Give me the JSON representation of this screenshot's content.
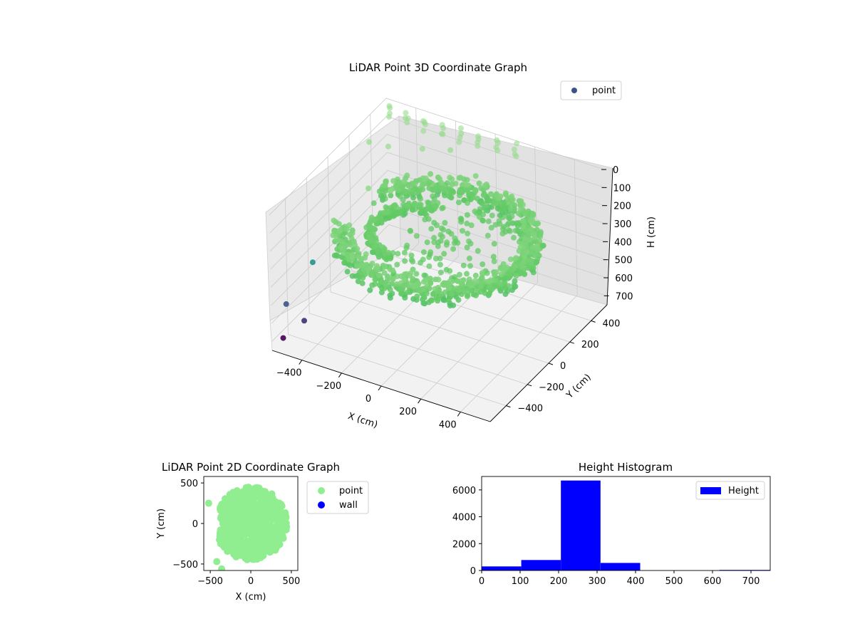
{
  "chart_data": [
    {
      "type": "scatter",
      "title": "LiDAR Point 3D Coordinate Graph",
      "xlabel": "X (cm)",
      "ylabel": "Y (cm)",
      "zlabel": "H (cm)",
      "xlim": [
        -550,
        550
      ],
      "ylim": [
        -550,
        550
      ],
      "zlim": [
        0,
        750
      ],
      "z_inverted": true,
      "xticks": [
        -400,
        -200,
        0,
        200,
        400
      ],
      "yticks": [
        -400,
        -200,
        0,
        200,
        400
      ],
      "zticks": [
        0,
        100,
        200,
        300,
        400,
        500,
        600,
        700
      ],
      "legend": {
        "entries": [
          "point"
        ],
        "placement": "top-right"
      },
      "colormap": "viridis",
      "series": [
        {
          "name": "point",
          "color": "#3b528b",
          "description_points": {
            "ring": {
              "r_min": 380,
              "r_max": 470,
              "h_min": 200,
              "h_max": 310
            },
            "disc": {
              "r_max": 420,
              "h": 270
            },
            "inner_arc": {
              "r": 210,
              "h": 240
            },
            "outliers": [
              {
                "x": -520,
                "y": -500,
                "h": 700
              },
              {
                "x": -540,
                "y": -430,
                "h": 560
              },
              {
                "x": -450,
                "y": -430,
                "h": 620
              },
              {
                "x": -500,
                "y": -250,
                "h": 420
              },
              {
                "x": -430,
                "y": -120,
                "h": 380
              },
              {
                "x": -380,
                "y": 60,
                "h": 150
              },
              {
                "x": -300,
                "y": 120,
                "h": 170
              }
            ],
            "top_row_h": [
              0,
              20,
              40,
              60
            ]
          }
        }
      ]
    },
    {
      "type": "scatter",
      "title": "LiDAR Point 2D Coordinate Graph",
      "xlabel": "X (cm)",
      "ylabel": "Y (cm)",
      "xlim": [
        -580,
        580
      ],
      "ylim": [
        -580,
        580
      ],
      "xticks": [
        -500,
        0,
        500
      ],
      "yticks": [
        -500,
        0,
        500
      ],
      "legend": {
        "entries": [
          "point",
          "wall"
        ],
        "placement": "outside-right"
      },
      "series": [
        {
          "name": "point",
          "color": "#90ee90",
          "shape": "filled disc radius ~450 cm with notch at left"
        },
        {
          "name": "wall",
          "color": "#0000ff",
          "points": []
        }
      ]
    },
    {
      "type": "bar",
      "title": "Height Histogram",
      "xlim": [
        0,
        750
      ],
      "ylim": [
        0,
        7000
      ],
      "xticks": [
        0,
        100,
        200,
        300,
        400,
        500,
        600,
        700
      ],
      "yticks": [
        0,
        2000,
        4000,
        6000
      ],
      "legend": {
        "entries": [
          "Height"
        ],
        "placement": "top-right"
      },
      "series": [
        {
          "name": "Height",
          "color": "#0000ff",
          "bins": [
            {
              "from": 0,
              "to": 103,
              "count": 300
            },
            {
              "from": 103,
              "to": 206,
              "count": 780
            },
            {
              "from": 206,
              "to": 309,
              "count": 6700
            },
            {
              "from": 309,
              "to": 412,
              "count": 560
            },
            {
              "from": 412,
              "to": 515,
              "count": 0
            },
            {
              "from": 515,
              "to": 618,
              "count": 0
            },
            {
              "from": 618,
              "to": 721,
              "count": 40
            },
            {
              "from": 721,
              "to": 824,
              "count": 40
            }
          ]
        }
      ]
    }
  ]
}
